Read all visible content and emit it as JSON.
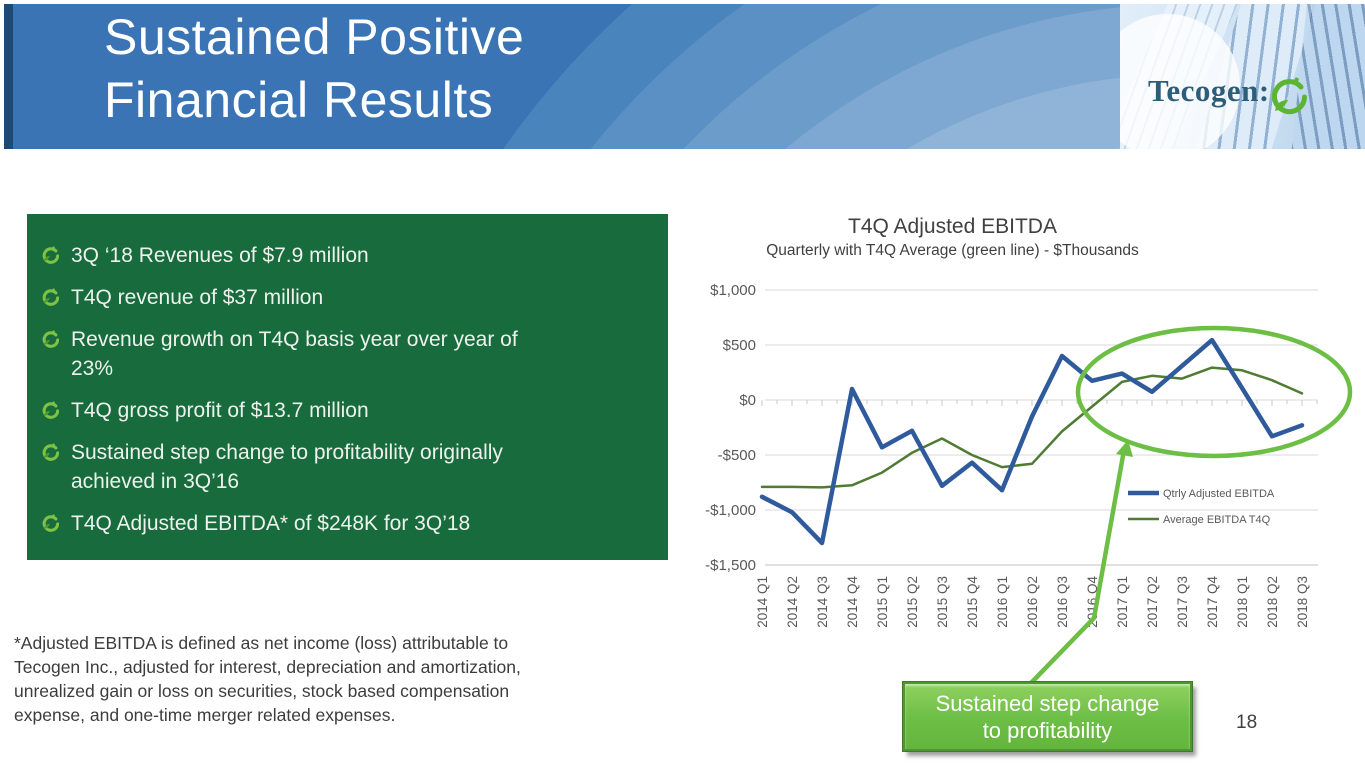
{
  "slide": {
    "title_line1": "Sustained Positive",
    "title_line2": "Financial Results",
    "page_number": "18",
    "logo_text": "Tecogen:"
  },
  "bullets": [
    "3Q ‘18 Revenues of $7.9 million",
    "T4Q revenue of $37 million",
    "Revenue growth on T4Q basis year over year of\n23%",
    "T4Q gross profit of $13.7 million",
    "Sustained step change to profitability originally\nachieved in 3Q’16",
    "T4Q Adjusted EBITDA* of $248K for 3Q’18"
  ],
  "footnote": "*Adjusted EBITDA is defined as net income (loss) attributable to\nTecogen Inc., adjusted for interest, depreciation and amortization,\nunrealized gain or loss on securities, stock based compensation\nexpense, and one-time merger related expenses.",
  "callout": {
    "line1": "Sustained step change",
    "line2": "to profitability"
  },
  "chart_data": {
    "type": "line",
    "title": "T4Q Adjusted EBITDA",
    "subtitle": "Quarterly with T4Q Average (green line) - $Thousands",
    "unit": "$Thousands",
    "categories": [
      "2014 Q1",
      "2014 Q2",
      "2014 Q3",
      "2014 Q4",
      "2015 Q1",
      "2015 Q2",
      "2015 Q3",
      "2015 Q4",
      "2016 Q1",
      "2016 Q2",
      "2016 Q3",
      "2016 Q4",
      "2017 Q1",
      "2017 Q2",
      "2017 Q3",
      "2017 Q4",
      "2018 Q1",
      "2018 Q2",
      "2018 Q3"
    ],
    "series": [
      {
        "name": "Qtrly Adjusted EBITDA",
        "color": "#2F5B9D",
        "width": 4.5,
        "values": [
          -880,
          -1020,
          -1300,
          100,
          -430,
          -280,
          -780,
          -570,
          -820,
          -150,
          400,
          175,
          240,
          75,
          310,
          545,
          110,
          -330,
          -230
        ]
      },
      {
        "name": "Average EBITDA T4Q",
        "color": "#4F7B33",
        "width": 2.5,
        "values": [
          -790,
          -790,
          -795,
          -775,
          -660,
          -480,
          -350,
          -500,
          -610,
          -580,
          -285,
          -60,
          165,
          220,
          195,
          295,
          270,
          180,
          60
        ]
      }
    ],
    "ylim": [
      -1500,
      1000
    ],
    "yticks": [
      1000,
      500,
      0,
      -500,
      -1000,
      -1500
    ],
    "ytick_labels": [
      "$1,000",
      "$500",
      "$0",
      "-$500",
      "-$1,000",
      "-$1,500"
    ],
    "grid": true,
    "legend_position": "middle-right",
    "annotations": {
      "ellipse_highlight": "green ellipse circling 2016 Q4 through 2018 Q3",
      "arrow_callout": "green arrow from callout box pointing to step-change region"
    }
  },
  "colors": {
    "banner_blue": "#3A74B5",
    "banner_edge": "#1F4975",
    "panel_green": "#186B3D",
    "series_blue": "#2F5B9D",
    "series_green": "#4F7B33",
    "accent_green": "#6CBE45",
    "gridline": "#D9D9D9",
    "axis_text": "#595959"
  }
}
